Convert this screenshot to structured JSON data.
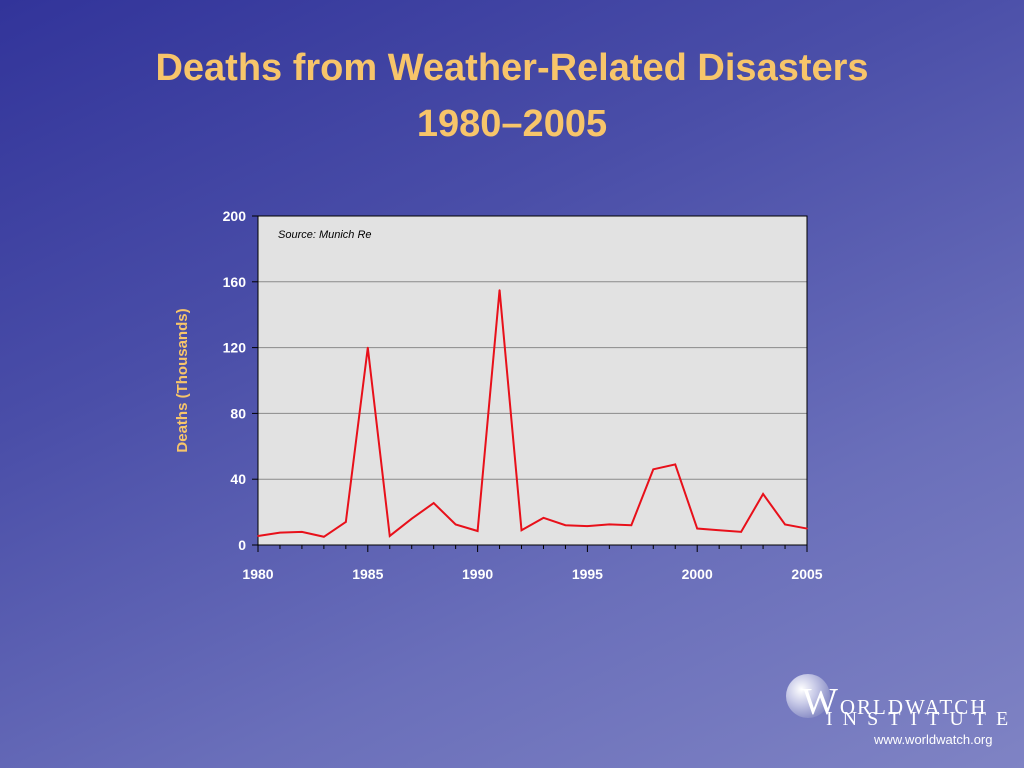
{
  "slide": {
    "title_line1": "Deaths from Weather-Related Disasters",
    "title_line2": "1980–2005"
  },
  "logo": {
    "initial": "W",
    "name_rest": "ORLDWATCH",
    "sub": "INSTITUTE",
    "url": "www.worldwatch.org"
  },
  "colors": {
    "title": "#f7c56a",
    "line": "#e8101a",
    "plot_background": "#e2e2e2"
  },
  "chart_data": {
    "type": "line",
    "title": "",
    "xlabel": "",
    "ylabel": "Deaths (Thousands)",
    "annotation": "Source:  Munich Re",
    "xlim": [
      1980,
      2005
    ],
    "ylim": [
      0,
      200
    ],
    "x_ticks": [
      "1980",
      "1985",
      "1990",
      "1995",
      "2000",
      "2005"
    ],
    "y_ticks": [
      "0",
      "40",
      "80",
      "120",
      "160",
      "200"
    ],
    "grid": true,
    "series": [
      {
        "x": [
          1980,
          1981,
          1982,
          1983,
          1984,
          1985,
          1986,
          1987,
          1988,
          1989,
          1990,
          1991,
          1992,
          1993,
          1994,
          1995,
          1996,
          1997,
          1998,
          1999,
          2000,
          2001,
          2002,
          2003,
          2004,
          2005
        ],
        "y": [
          5.5,
          7.5,
          8,
          5,
          14,
          120,
          5.5,
          16,
          25.5,
          12.5,
          8.5,
          155,
          9,
          16.5,
          12,
          11.5,
          12.5,
          12,
          46,
          49,
          10,
          9,
          8,
          31,
          12.5,
          10
        ]
      }
    ]
  }
}
